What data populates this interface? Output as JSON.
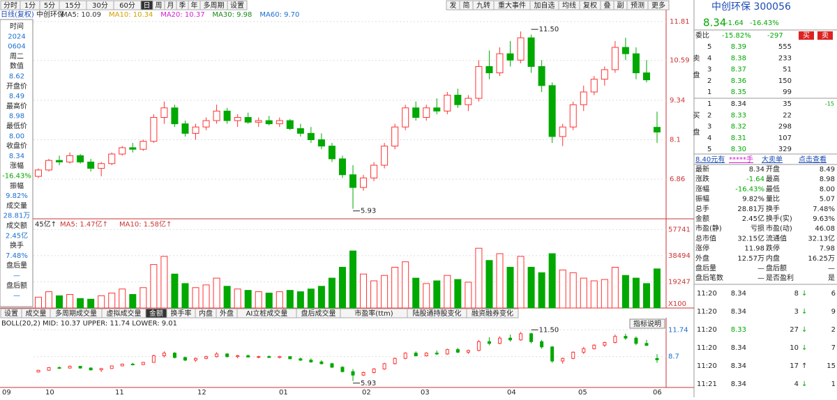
{
  "toolbar": {
    "periods": [
      "分时",
      "1分",
      "5分",
      "15分",
      "30分",
      "60分",
      "日",
      "周",
      "月",
      "季",
      "年",
      "多周期",
      "设置"
    ],
    "tools": [
      "发",
      "简",
      "九转",
      "重大事件",
      "加自选",
      "均线",
      "复权",
      "叠",
      "副",
      "预测",
      "更多"
    ]
  },
  "legend": {
    "label": "日线(复权)",
    "name": "中创环保",
    "mas": [
      "MA5: 10.09",
      "MA10: 10.34",
      "MA20: 10.37",
      "MA30: 9.98",
      "MA60: 9.70"
    ]
  },
  "info_panel": [
    "时间",
    "2024",
    "0604",
    "周二",
    "数值",
    "8.62",
    "开盘价",
    "8.49",
    "最高价",
    "8.98",
    "最低价",
    "8.00",
    "收盘价",
    "8.34",
    "涨幅",
    "-16.43%",
    "振幅",
    "9.82%",
    "成交量",
    "28.81万",
    "成交额",
    "2.45亿",
    "换手",
    "7.48%",
    "盘后量",
    "—",
    "盘后额",
    "—"
  ],
  "tabs": [
    "设置",
    "成交量",
    "多周期成交量",
    "虚拟成交量",
    "金额",
    "换手率",
    "内盘",
    "外盘",
    "AI立桩成交量",
    "盘后成交量",
    "市盈率(ttm)",
    "陆股通持股变化",
    "融资融券变化"
  ],
  "months": [
    "09",
    "10",
    "11",
    "12",
    "01",
    "02",
    "03",
    "04",
    "05",
    "06"
  ],
  "chart_data": [
    {
      "type": "candlestick",
      "up_color": "#ff3232",
      "down_color": "#00a800",
      "ylim": [
        5.66,
        12.05
      ],
      "yticks": [
        6.86,
        8.1,
        {
          "value": 9.34,
          "label": "9.34"
        },
        10.59,
        11.81
      ],
      "annotations": [
        {
          "value": 11.5,
          "label": "11.50"
        },
        {
          "value": 5.93,
          "label": "5.93"
        }
      ],
      "candles": [
        [
          6.95,
          7.2,
          6.9,
          7.15
        ],
        [
          7.15,
          7.5,
          7.1,
          7.45
        ],
        [
          7.45,
          7.6,
          7.3,
          7.4
        ],
        [
          7.4,
          7.7,
          7.35,
          7.6
        ],
        [
          7.6,
          7.65,
          7.35,
          7.4
        ],
        [
          7.4,
          7.5,
          7.1,
          7.2
        ],
        [
          7.2,
          7.4,
          6.95,
          7.35
        ],
        [
          7.35,
          7.7,
          7.3,
          7.65
        ],
        [
          7.65,
          7.9,
          7.6,
          7.85
        ],
        [
          7.85,
          8.0,
          7.7,
          7.8
        ],
        [
          7.8,
          8.1,
          7.75,
          8.05
        ],
        [
          8.05,
          8.9,
          8.0,
          8.8
        ],
        [
          8.8,
          9.3,
          8.6,
          9.1
        ],
        [
          9.1,
          9.2,
          8.5,
          8.6
        ],
        [
          8.6,
          8.7,
          8.2,
          8.3
        ],
        [
          8.3,
          8.6,
          8.1,
          8.5
        ],
        [
          8.5,
          8.8,
          8.4,
          8.7
        ],
        [
          8.7,
          9.2,
          8.6,
          9.0
        ],
        [
          9.0,
          9.1,
          8.6,
          8.7
        ],
        [
          8.7,
          8.9,
          8.5,
          8.8
        ],
        [
          8.8,
          8.95,
          8.6,
          8.65
        ],
        [
          8.65,
          8.8,
          8.5,
          8.7
        ],
        [
          8.7,
          8.85,
          8.55,
          8.6
        ],
        [
          8.6,
          8.8,
          8.5,
          8.7
        ],
        [
          8.7,
          8.75,
          8.4,
          8.45
        ],
        [
          8.45,
          8.6,
          8.2,
          8.3
        ],
        [
          8.3,
          8.5,
          8.0,
          8.1
        ],
        [
          8.1,
          8.3,
          7.8,
          7.9
        ],
        [
          7.9,
          8.0,
          7.4,
          7.5
        ],
        [
          7.5,
          7.6,
          6.9,
          7.0
        ],
        [
          7.0,
          7.3,
          5.93,
          6.6
        ],
        [
          6.6,
          7.0,
          6.5,
          6.9
        ],
        [
          6.9,
          7.4,
          6.8,
          7.3
        ],
        [
          7.3,
          8.0,
          7.2,
          7.9
        ],
        [
          7.9,
          8.6,
          7.8,
          8.5
        ],
        [
          8.5,
          9.2,
          8.4,
          9.1
        ],
        [
          9.1,
          9.3,
          8.7,
          8.8
        ],
        [
          8.8,
          9.2,
          8.7,
          9.1
        ],
        [
          9.1,
          9.4,
          8.9,
          9.0
        ],
        [
          9.0,
          9.6,
          8.9,
          9.5
        ],
        [
          9.5,
          9.7,
          9.1,
          9.2
        ],
        [
          9.2,
          9.5,
          9.0,
          9.4
        ],
        [
          9.4,
          10.6,
          9.3,
          10.4
        ],
        [
          10.4,
          10.9,
          10.0,
          10.2
        ],
        [
          10.2,
          11.0,
          10.1,
          10.8
        ],
        [
          10.8,
          11.2,
          10.4,
          10.6
        ],
        [
          10.6,
          11.5,
          10.5,
          11.3
        ],
        [
          11.3,
          11.4,
          10.2,
          10.4
        ],
        [
          10.4,
          10.6,
          9.6,
          9.8
        ],
        [
          9.8,
          9.9,
          8.0,
          8.2
        ],
        [
          8.2,
          8.6,
          7.9,
          8.5
        ],
        [
          8.5,
          9.3,
          8.4,
          9.2
        ],
        [
          9.2,
          9.8,
          9.0,
          9.6
        ],
        [
          9.6,
          10.1,
          9.5,
          10.0
        ],
        [
          10.0,
          10.4,
          9.8,
          10.3
        ],
        [
          10.3,
          11.2,
          10.2,
          11.0
        ],
        [
          11.0,
          11.3,
          10.6,
          10.8
        ],
        [
          10.8,
          11.0,
          10.0,
          10.2
        ],
        [
          10.2,
          10.6,
          9.9,
          9.98
        ],
        [
          8.49,
          8.98,
          8.0,
          8.34
        ]
      ]
    },
    {
      "type": "bar",
      "title": [
        "45亿↑",
        "MA5: 1.47亿↑",
        "MA10: 1.58亿↑"
      ],
      "unit": "X100",
      "ylim": [
        0,
        60000
      ],
      "yticks": [
        19247,
        38494,
        57741
      ],
      "values": [
        8000,
        12000,
        9000,
        10000,
        7000,
        6500,
        9000,
        11000,
        14000,
        10000,
        15000,
        32000,
        38000,
        25000,
        18000,
        15000,
        17000,
        22000,
        16000,
        14000,
        13000,
        12000,
        11000,
        12000,
        13000,
        12000,
        14000,
        16000,
        22000,
        30000,
        42000,
        25000,
        20000,
        24000,
        30000,
        34000,
        22000,
        18000,
        20000,
        24000,
        21000,
        19000,
        44000,
        35000,
        40000,
        30000,
        38000,
        30000,
        26000,
        40000,
        28000,
        26000,
        22000,
        20000,
        21000,
        30000,
        24000,
        22000,
        18000,
        28810
      ]
    },
    {
      "type": "boll",
      "title": "BOLL(20,2) MID: 10.37 UPPER: 11.74 LOWER: 9.01",
      "button": "指标说明",
      "ylim": [
        5.2,
        12.95
      ],
      "yticks": [
        8.7,
        11.74
      ],
      "annotations": [
        {
          "value": 11.5,
          "label": "11.50"
        },
        {
          "value": 5.93,
          "label": "5.93"
        }
      ]
    }
  ],
  "quote": {
    "title": "中创环保 300056",
    "price": "8.34",
    "change": "-1.64",
    "pct": "-16.43%",
    "ratio_label": "委比",
    "ratio": "-15.82%",
    "diff": "-297",
    "buy": "买",
    "sell": "卖",
    "sell_side": "卖盘",
    "buy_side": "买盘",
    "asks": [
      [
        "5",
        "8.39",
        "555"
      ],
      [
        "4",
        "8.38",
        "233"
      ],
      [
        "3",
        "8.37",
        "51"
      ],
      [
        "2",
        "8.36",
        "150"
      ],
      [
        "1",
        "8.35",
        "99"
      ]
    ],
    "bids": [
      [
        "1",
        "8.34",
        "35",
        "-15"
      ],
      [
        "2",
        "8.33",
        "22"
      ],
      [
        "3",
        "8.32",
        "298"
      ],
      [
        "4",
        "8.31",
        "107"
      ],
      [
        "5",
        "8.30",
        "329"
      ]
    ],
    "tabs": [
      "8.40元有",
      "*****手",
      "大卖单",
      "点击查看"
    ],
    "stats": [
      [
        "最新",
        "8.34",
        "开盘",
        "8.49"
      ],
      [
        "涨跌",
        "-1.64",
        "最高",
        "8.98"
      ],
      [
        "涨幅",
        "-16.43%",
        "最低",
        "8.00"
      ],
      [
        "振幅",
        "9.82%",
        "量比",
        "5.07"
      ],
      [
        "总手",
        "28.81万",
        "换手",
        "7.48%"
      ],
      [
        "金额",
        "2.45亿",
        "换手(实)",
        "9.63%"
      ],
      [
        "市盈(静)",
        "亏损",
        "市盈(动)",
        "46.08"
      ],
      [
        "总市值",
        "32.15亿",
        "流通值",
        "32.13亿"
      ],
      [
        "涨停",
        "11.98",
        "跌停",
        "7.98"
      ],
      [
        "外盘",
        "12.57万",
        "内盘",
        "16.25万"
      ],
      [
        "盘后量",
        "—",
        "盘后额",
        "—"
      ],
      [
        "盘后笔数",
        "—",
        "是否盈利",
        "是"
      ]
    ],
    "trades": [
      [
        "11:20",
        "8.34",
        "8",
        "↓",
        "6"
      ],
      [
        "11:20",
        "8.34",
        "3",
        "↓",
        "9"
      ],
      [
        "11:20",
        "8.33",
        "27",
        "↓",
        "2"
      ],
      [
        "11:20",
        "8.34",
        "10",
        "↓",
        "7"
      ],
      [
        "11:20",
        "8.34",
        "17",
        "↑",
        "15"
      ],
      [
        "11:21",
        "8.34",
        "4",
        "↓",
        "1"
      ]
    ]
  }
}
